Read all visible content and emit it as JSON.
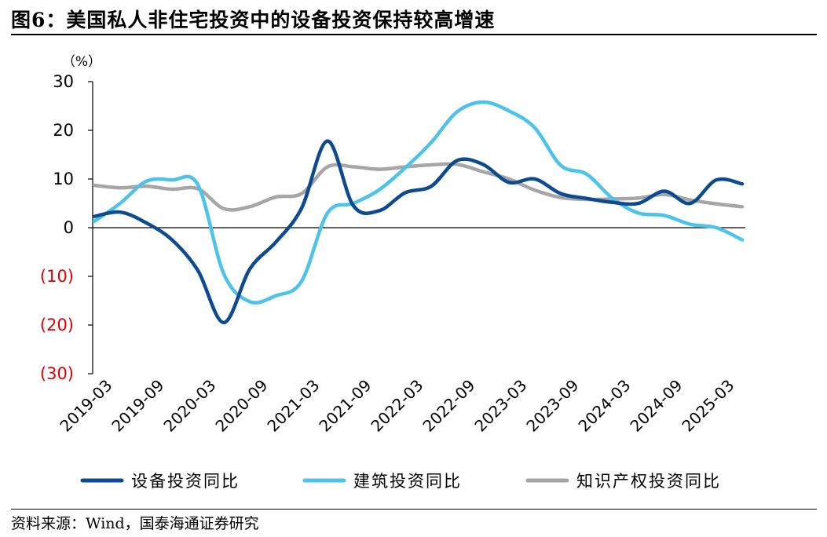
{
  "title": "图6：美国私人非住宅投资中的设备投资保持较高增速",
  "source": "资料来源：Wind，国泰海通证券研究",
  "chart_data": {
    "type": "line",
    "y_unit_label": "（%）",
    "ylim": [
      -30,
      30
    ],
    "y_ticks": [
      30,
      20,
      10,
      0,
      -10,
      -20,
      -30
    ],
    "y_tick_labels": [
      "30",
      "20",
      "10",
      "0",
      "(10)",
      "(20)",
      "(30)"
    ],
    "negative_tick_color": "#e00000",
    "x_tick_labels": [
      "2019-03",
      "2019-09",
      "2020-03",
      "2020-09",
      "2021-03",
      "2021-09",
      "2022-03",
      "2022-09",
      "2023-03",
      "2023-09",
      "2024-03",
      "2024-09",
      "2025-03"
    ],
    "x": [
      "2019-03",
      "2019-06",
      "2019-09",
      "2019-12",
      "2020-03",
      "2020-06",
      "2020-09",
      "2020-12",
      "2021-03",
      "2021-06",
      "2021-09",
      "2021-12",
      "2022-03",
      "2022-06",
      "2022-09",
      "2022-12",
      "2023-03",
      "2023-06",
      "2023-09",
      "2023-12",
      "2024-03",
      "2024-06",
      "2024-09",
      "2024-12",
      "2025-03",
      "2025-06"
    ],
    "grid": false,
    "legend_position": "bottom",
    "series": [
      {
        "name": "设备投资同比",
        "color": "#0d4a8f",
        "values": [
          2.3,
          3.2,
          1.0,
          -2.5,
          -8.8,
          -19.5,
          -8.5,
          -3.0,
          4.0,
          17.8,
          4.5,
          3.5,
          7.2,
          8.5,
          13.8,
          13.0,
          9.3,
          10.0,
          7.0,
          6.0,
          5.2,
          5.0,
          7.5,
          5.0,
          9.8,
          9.0
        ]
      },
      {
        "name": "建筑投资同比",
        "color": "#4dc3ec",
        "values": [
          1.3,
          5.0,
          9.5,
          9.8,
          8.8,
          -9.5,
          -15.2,
          -14.0,
          -11.0,
          3.0,
          5.0,
          7.8,
          12.3,
          17.5,
          23.8,
          25.8,
          24.0,
          20.5,
          12.8,
          11.0,
          6.0,
          3.0,
          2.5,
          0.7,
          0.0,
          -2.5
        ]
      },
      {
        "name": "知识产权投资同比",
        "color": "#a6a6a6",
        "values": [
          8.7,
          8.2,
          8.5,
          7.9,
          8.0,
          3.9,
          4.3,
          6.3,
          7.0,
          12.5,
          12.5,
          12.0,
          12.5,
          12.9,
          13.0,
          11.5,
          10.0,
          7.7,
          6.2,
          5.8,
          5.9,
          6.1,
          6.8,
          5.7,
          4.9,
          4.3
        ]
      }
    ]
  }
}
